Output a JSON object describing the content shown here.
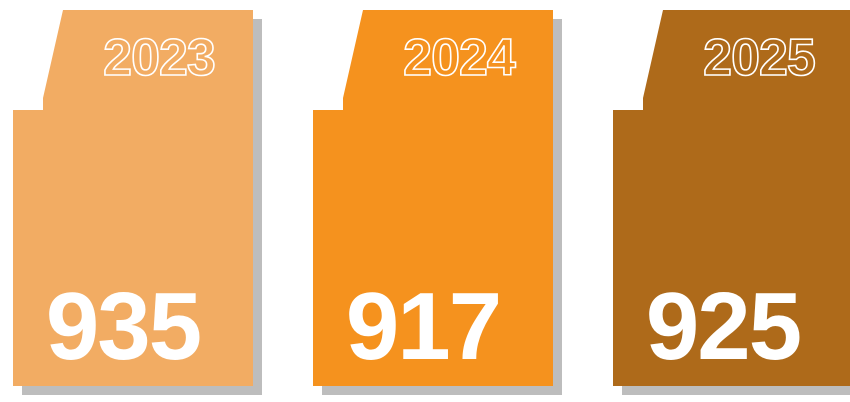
{
  "chart_data": {
    "type": "bar",
    "categories": [
      "2023",
      "2024",
      "2025"
    ],
    "values": [
      935,
      917,
      925
    ],
    "colors": [
      "#F2AC63",
      "#F5921E",
      "#AE6A1A"
    ],
    "shadow_color": "#BDBDBD",
    "title": "",
    "xlabel": "",
    "ylabel": ""
  }
}
